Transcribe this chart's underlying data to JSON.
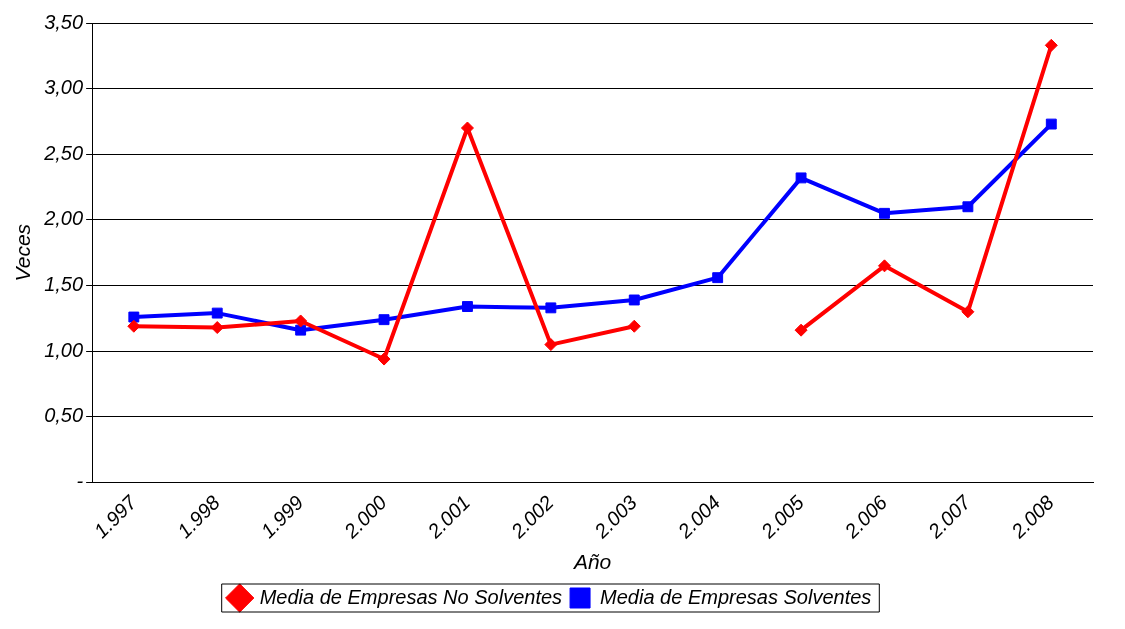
{
  "chart_data": {
    "type": "line",
    "xlabel": "Año",
    "ylabel": "Veces",
    "categories": [
      "1.997",
      "1.998",
      "1.999",
      "2.000",
      "2.001",
      "2.002",
      "2.003",
      "2.004",
      "2.005",
      "2.006",
      "2.007",
      "2.008"
    ],
    "series": [
      {
        "name": "Media de Empresas No Solventes",
        "color": "#ff0000",
        "marker": "diamond",
        "values": [
          1.19,
          1.18,
          1.23,
          0.94,
          2.7,
          1.05,
          1.19,
          null,
          1.16,
          1.65,
          1.3,
          3.33
        ]
      },
      {
        "name": "Media de Empresas Solventes",
        "color": "#0000ff",
        "marker": "square",
        "values": [
          1.26,
          1.29,
          1.16,
          1.24,
          1.34,
          1.33,
          1.39,
          1.56,
          2.32,
          2.05,
          2.1,
          2.73
        ]
      }
    ],
    "ylim": [
      0,
      3.5
    ],
    "yticks": [
      {
        "value": 0,
        "label": "-"
      },
      {
        "value": 0.5,
        "label": "0,50"
      },
      {
        "value": 1,
        "label": "1,00"
      },
      {
        "value": 1.5,
        "label": "1,50"
      },
      {
        "value": 2,
        "label": "2,00"
      },
      {
        "value": 2.5,
        "label": "2,50"
      },
      {
        "value": 3,
        "label": "3,00"
      },
      {
        "value": 3.5,
        "label": "3,50"
      }
    ],
    "grid": "y",
    "legend": "bottom",
    "line_style": "solid"
  }
}
